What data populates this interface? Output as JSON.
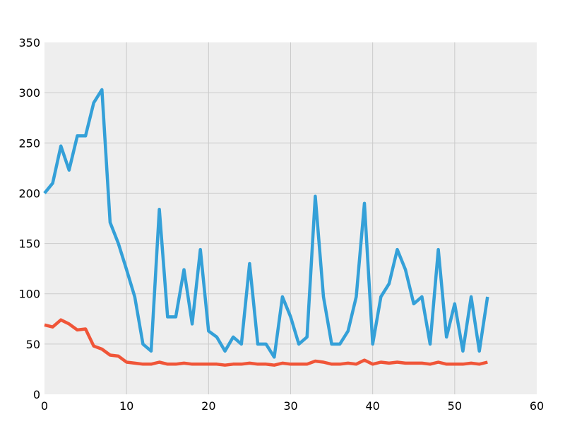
{
  "chart_data": {
    "type": "line",
    "xlim": [
      0,
      60
    ],
    "ylim": [
      0,
      350
    ],
    "x_ticks": [
      0,
      10,
      20,
      30,
      40,
      50,
      60
    ],
    "y_ticks": [
      0,
      50,
      100,
      150,
      200,
      250,
      300,
      350
    ],
    "grid": true,
    "background": "#eeeeee",
    "series": [
      {
        "color": "#34a0d8",
        "x": [
          0,
          1,
          2,
          3,
          4,
          5,
          6,
          7,
          8,
          9,
          10,
          11,
          12,
          13,
          14,
          15,
          16,
          17,
          18,
          19,
          20,
          21,
          22,
          23,
          24,
          25,
          26,
          27,
          28,
          29,
          30,
          31,
          32,
          33,
          34,
          35,
          36,
          37,
          38,
          39,
          40,
          41,
          42,
          43,
          44,
          45,
          46,
          47,
          48,
          49,
          50,
          51,
          52,
          53,
          54
        ],
        "values": [
          200,
          210,
          247,
          223,
          257,
          257,
          290,
          303,
          171,
          150,
          124,
          97,
          50,
          43,
          184,
          77,
          77,
          124,
          70,
          144,
          63,
          57,
          43,
          57,
          50,
          130,
          50,
          50,
          37,
          97,
          77,
          50,
          57,
          197,
          97,
          50,
          50,
          63,
          97,
          190,
          50,
          97,
          110,
          144,
          124,
          90,
          97,
          50,
          144,
          57,
          90,
          43,
          97,
          43,
          97
        ]
      },
      {
        "color": "#f05538",
        "x": [
          0,
          1,
          2,
          3,
          4,
          5,
          6,
          7,
          8,
          9,
          10,
          11,
          12,
          13,
          14,
          15,
          16,
          17,
          18,
          19,
          20,
          21,
          22,
          23,
          24,
          25,
          26,
          27,
          28,
          29,
          30,
          31,
          32,
          33,
          34,
          35,
          36,
          37,
          38,
          39,
          40,
          41,
          42,
          43,
          44,
          45,
          46,
          47,
          48,
          49,
          50,
          51,
          52,
          53,
          54
        ],
        "values": [
          69,
          67,
          74,
          70,
          64,
          65,
          48,
          45,
          39,
          38,
          32,
          31,
          30,
          30,
          32,
          30,
          30,
          31,
          30,
          30,
          30,
          30,
          29,
          30,
          30,
          31,
          30,
          30,
          29,
          31,
          30,
          30,
          30,
          33,
          32,
          30,
          30,
          31,
          30,
          34,
          30,
          32,
          31,
          32,
          31,
          31,
          31,
          30,
          32,
          30,
          30,
          30,
          31,
          30,
          32
        ]
      }
    ]
  }
}
